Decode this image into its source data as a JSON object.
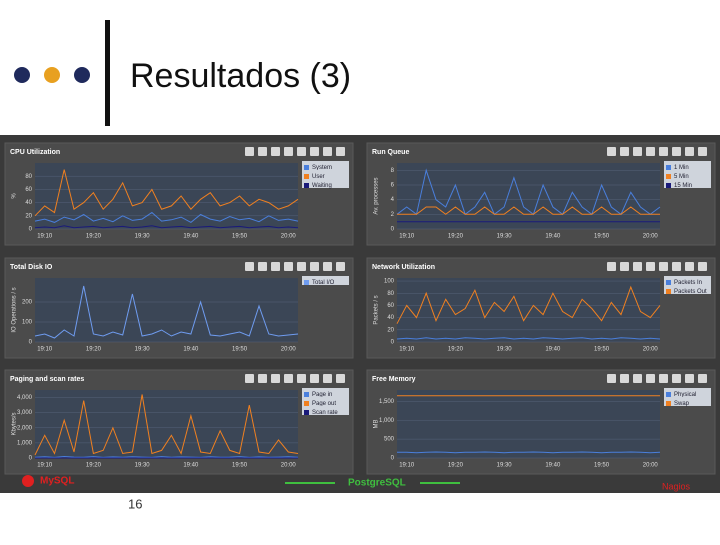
{
  "slide": {
    "title": "Resultados (3)",
    "page": "16",
    "labels": [
      "MySQL",
      "PostgreSQL",
      "Nagios"
    ]
  },
  "chart_data": [
    {
      "type": "line",
      "title": "CPU Utilization",
      "ylabel": "%",
      "ylim": [
        0,
        100
      ],
      "yticks": [
        0,
        20,
        40,
        60,
        80
      ],
      "categories": [
        null,
        "19:10",
        null,
        null,
        null,
        null,
        "19:20",
        null,
        null,
        null,
        null,
        "19:30",
        null,
        null,
        null,
        null,
        "19:40",
        null,
        null,
        null,
        null,
        "19:50",
        null,
        null,
        null,
        null,
        "20:00",
        null
      ],
      "series": [
        {
          "name": "System",
          "color": "#4a7fdc",
          "values": [
            12,
            15,
            10,
            18,
            14,
            22,
            12,
            16,
            11,
            20,
            13,
            15,
            25,
            12,
            14,
            18,
            10,
            22,
            15,
            12,
            19,
            14,
            16,
            11,
            20,
            13,
            15,
            12
          ]
        },
        {
          "name": "User",
          "color": "#f08020",
          "values": [
            20,
            35,
            25,
            90,
            30,
            40,
            55,
            30,
            45,
            70,
            35,
            40,
            60,
            30,
            35,
            50,
            30,
            45,
            55,
            35,
            40,
            50,
            35,
            45,
            40,
            30,
            35,
            45
          ]
        },
        {
          "name": "Waiting",
          "color": "#1a1a7a",
          "values": [
            2,
            3,
            2,
            5,
            2,
            3,
            4,
            2,
            3,
            4,
            2,
            3,
            5,
            2,
            3,
            4,
            2,
            3,
            4,
            2,
            3,
            4,
            2,
            3,
            4,
            2,
            3,
            2
          ]
        }
      ]
    },
    {
      "type": "line",
      "title": "Run Queue",
      "ylabel": "Av. processes",
      "ylim": [
        0,
        9
      ],
      "yticks": [
        0,
        2,
        4,
        6,
        8
      ],
      "categories": [
        null,
        "19:10",
        null,
        null,
        null,
        null,
        "19:20",
        null,
        null,
        null,
        null,
        "19:30",
        null,
        null,
        null,
        null,
        "19:40",
        null,
        null,
        null,
        null,
        "19:50",
        null,
        null,
        null,
        null,
        "20:00",
        null
      ],
      "series": [
        {
          "name": "1 Min",
          "color": "#4a7fdc",
          "values": [
            2,
            3,
            2,
            8,
            4,
            3,
            6,
            2,
            3,
            5,
            2,
            3,
            7,
            3,
            2,
            6,
            3,
            2,
            5,
            3,
            2,
            6,
            3,
            2,
            5,
            3,
            2,
            3
          ]
        },
        {
          "name": "5 Min",
          "color": "#f08020",
          "values": [
            2,
            2,
            2,
            3,
            3,
            2,
            3,
            2,
            2,
            3,
            2,
            2,
            3,
            2,
            2,
            3,
            2,
            2,
            3,
            2,
            2,
            3,
            2,
            2,
            3,
            2,
            2,
            2
          ]
        },
        {
          "name": "15 Min",
          "color": "#1a1a7a",
          "values": [
            1,
            1,
            1,
            1,
            1,
            1,
            1,
            1,
            1,
            1,
            1,
            1,
            1,
            1,
            1,
            1,
            1,
            1,
            1,
            1,
            1,
            1,
            1,
            1,
            1,
            1,
            1,
            1
          ]
        }
      ]
    },
    {
      "type": "line",
      "title": "Total Disk IO",
      "ylabel": "IO Operations / s",
      "ylim": [
        0,
        320
      ],
      "yticks": [
        0,
        100,
        200
      ],
      "categories": [
        null,
        "19:10",
        null,
        null,
        null,
        null,
        "19:20",
        null,
        null,
        null,
        null,
        "19:30",
        null,
        null,
        null,
        null,
        "19:40",
        null,
        null,
        null,
        null,
        "19:50",
        null,
        null,
        null,
        null,
        "20:00",
        null
      ],
      "series": [
        {
          "name": "Total I/O",
          "color": "#6f9cf0",
          "values": [
            30,
            40,
            20,
            60,
            30,
            280,
            40,
            30,
            50,
            35,
            240,
            30,
            40,
            60,
            30,
            50,
            40,
            200,
            35,
            30,
            40,
            50,
            30,
            180,
            40,
            30,
            35,
            40
          ]
        }
      ]
    },
    {
      "type": "line",
      "title": "Network Utilization",
      "ylabel": "Packets / s",
      "ylim": [
        0,
        105
      ],
      "yticks": [
        0,
        20,
        40,
        60,
        80,
        100
      ],
      "categories": [
        null,
        "19:10",
        null,
        null,
        null,
        null,
        "19:20",
        null,
        null,
        null,
        null,
        "19:30",
        null,
        null,
        null,
        null,
        "19:40",
        null,
        null,
        null,
        null,
        "19:50",
        null,
        null,
        null,
        null,
        "20:00",
        null
      ],
      "series": [
        {
          "name": "Packets In",
          "color": "#4a7fdc",
          "values": [
            5,
            6,
            5,
            7,
            5,
            6,
            5,
            7,
            6,
            5,
            6,
            7,
            5,
            6,
            5,
            7,
            6,
            5,
            6,
            7,
            5,
            6,
            5,
            7,
            6,
            5,
            6,
            5
          ]
        },
        {
          "name": "Packets Out",
          "color": "#f08020",
          "values": [
            30,
            60,
            40,
            80,
            35,
            70,
            45,
            55,
            85,
            40,
            65,
            50,
            75,
            35,
            60,
            45,
            80,
            50,
            40,
            70,
            55,
            35,
            65,
            45,
            90,
            50,
            40,
            60
          ]
        }
      ]
    },
    {
      "type": "line",
      "title": "Paging and scan rates",
      "ylabel": "Kbytes/s",
      "ylim": [
        0,
        4500
      ],
      "yticks": [
        0,
        {
          "value": 1000,
          "label": "1,000"
        },
        {
          "value": 2000,
          "label": "2,000"
        },
        {
          "value": 3000,
          "label": "3,000"
        },
        {
          "value": 4000,
          "label": "4,000"
        }
      ],
      "categories": [
        null,
        "19:10",
        null,
        null,
        null,
        null,
        "19:20",
        null,
        null,
        null,
        null,
        "19:30",
        null,
        null,
        null,
        null,
        "19:40",
        null,
        null,
        null,
        null,
        "19:50",
        null,
        null,
        null,
        null,
        "20:00",
        null
      ],
      "series": [
        {
          "name": "Page in",
          "color": "#4a7fdc",
          "values": [
            50,
            80,
            40,
            100,
            60,
            50,
            90,
            40,
            70,
            50,
            80,
            60,
            40,
            90,
            50,
            70,
            60,
            40,
            80,
            50,
            60,
            90,
            40,
            70,
            50,
            60,
            80,
            50
          ]
        },
        {
          "name": "Page out",
          "color": "#f08020",
          "values": [
            200,
            1500,
            300,
            2500,
            400,
            3800,
            300,
            500,
            2000,
            300,
            400,
            4200,
            300,
            500,
            1500,
            300,
            2800,
            400,
            300,
            1800,
            500,
            300,
            3500,
            400,
            300,
            1200,
            400,
            300
          ]
        },
        {
          "name": "Scan rate",
          "color": "#1a1a7a",
          "values": [
            0,
            0,
            0,
            0,
            0,
            0,
            0,
            0,
            0,
            0,
            0,
            0,
            0,
            0,
            0,
            0,
            0,
            0,
            0,
            0,
            0,
            0,
            0,
            0,
            0,
            0,
            0,
            0
          ]
        }
      ]
    },
    {
      "type": "line",
      "title": "Free Memory",
      "ylabel": "MB",
      "ylim": [
        0,
        1800
      ],
      "yticks": [
        0,
        500,
        {
          "value": 1000,
          "label": "1,000"
        },
        {
          "value": 1500,
          "label": "1,500"
        }
      ],
      "categories": [
        null,
        "19:10",
        null,
        null,
        null,
        null,
        "19:20",
        null,
        null,
        null,
        null,
        "19:30",
        null,
        null,
        null,
        null,
        "19:40",
        null,
        null,
        null,
        null,
        "19:50",
        null,
        null,
        null,
        null,
        "20:00",
        null
      ],
      "series": [
        {
          "name": "Physical",
          "color": "#4a7fdc",
          "values": [
            150,
            150,
            140,
            150,
            160,
            150,
            140,
            150,
            150,
            160,
            150,
            140,
            150,
            150,
            160,
            150,
            140,
            150,
            150,
            160,
            150,
            140,
            150,
            150,
            160,
            150,
            140,
            150
          ]
        },
        {
          "name": "Swap",
          "color": "#f08020",
          "values": [
            1650,
            1650,
            1650,
            1650,
            1650,
            1650,
            1650,
            1650,
            1650,
            1650,
            1650,
            1650,
            1650,
            1650,
            1650,
            1650,
            1650,
            1650,
            1650,
            1650,
            1650,
            1650,
            1650,
            1650,
            1650,
            1650,
            1650,
            1650
          ]
        }
      ]
    }
  ]
}
